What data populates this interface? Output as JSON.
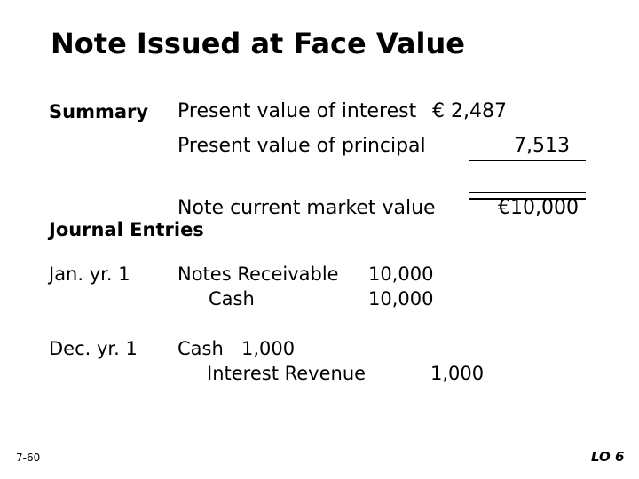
{
  "slide": {
    "title": "Note Issued at Face Value",
    "summary": {
      "label": "Summary",
      "rows": [
        {
          "label": "Present value of interest",
          "value": "€ 2,487"
        },
        {
          "label": "Present value of principal",
          "value": "7,513"
        },
        {
          "label": "Note current market value",
          "value": "€10,000"
        }
      ]
    },
    "journal": {
      "heading": "Journal Entries",
      "entries": [
        {
          "date": "Jan. yr. 1",
          "debit_account": "Notes Receivable",
          "debit_amount": "10,000",
          "credit_account": "Cash",
          "credit_amount": "10,000"
        },
        {
          "date": "Dec. yr. 1",
          "debit_account": "Cash",
          "debit_amount": "1,000",
          "credit_account": "Interest Revenue",
          "credit_amount": "1,000"
        }
      ]
    },
    "footer": {
      "page_number": "7-60",
      "learning_objective": "LO 6"
    }
  }
}
